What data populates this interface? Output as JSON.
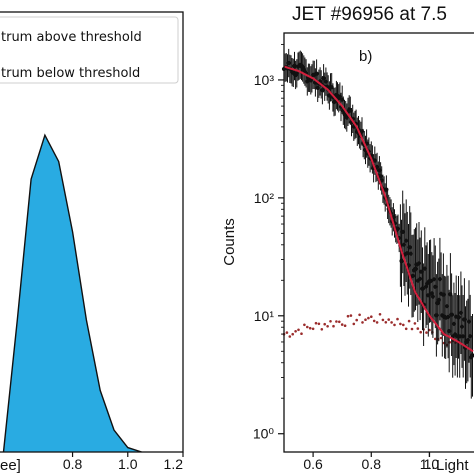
{
  "chart_data": [
    {
      "type": "area",
      "legend": {
        "placement": "top",
        "entries": [
          "trum above threshold",
          "trum below threshold"
        ]
      },
      "xlabel": "ee]",
      "xlim": [
        0.53,
        1.2
      ],
      "x_ticks": [
        "0.8",
        "1.0",
        "1.2"
      ],
      "series": [
        {
          "x": [
            0.55,
            0.6,
            0.65,
            0.7,
            0.75,
            0.8,
            0.85,
            0.9,
            0.95,
            1.0,
            1.05
          ],
          "values": [
            0.0,
            0.3,
            0.62,
            0.72,
            0.66,
            0.5,
            0.3,
            0.14,
            0.05,
            0.01,
            0.0
          ]
        }
      ],
      "colors": {
        "fill": "#29abe2",
        "edge": "#111111"
      }
    },
    {
      "type": "scatter",
      "title": "JET #96956 at 7.5",
      "panel_label": "b)",
      "ylabel": "Counts",
      "xlabel": "Light",
      "yscale": "log",
      "xlim": [
        0.5,
        1.16
      ],
      "ylim": [
        0.7,
        2500
      ],
      "x_ticks": [
        "0.6",
        "0.8",
        "1.0",
        "1."
      ],
      "y_ticks": [
        {
          "value": 1,
          "label": "10⁰"
        },
        {
          "value": 10,
          "label": "10¹"
        },
        {
          "value": 100,
          "label": "10²"
        },
        {
          "value": 1000,
          "label": "10³"
        }
      ],
      "series": [
        {
          "role": "measured",
          "x": [
            0.5,
            0.55,
            0.6,
            0.65,
            0.7,
            0.75,
            0.8,
            0.85,
            0.9,
            0.95,
            1.0,
            1.05,
            1.1,
            1.15
          ],
          "values": [
            1300,
            1200,
            1050,
            850,
            620,
            420,
            230,
            110,
            42,
            20,
            16,
            13,
            8,
            6
          ]
        },
        {
          "role": "fit",
          "x": [
            0.5,
            0.55,
            0.6,
            0.65,
            0.7,
            0.75,
            0.8,
            0.85,
            0.9,
            0.95,
            1.0,
            1.05,
            1.1,
            1.15
          ],
          "values": [
            1300,
            1190,
            1030,
            830,
            600,
            400,
            215,
            100,
            38,
            16,
            10,
            7,
            6,
            5
          ]
        },
        {
          "role": "background",
          "x": [
            0.5,
            0.55,
            0.6,
            0.65,
            0.7,
            0.75,
            0.8,
            0.85,
            0.9,
            0.95,
            1.0,
            1.05,
            1.1
          ],
          "values": [
            7,
            7.6,
            8.1,
            8.6,
            9.0,
            9.3,
            9.5,
            9.3,
            8.8,
            8.0,
            7.2,
            6.4,
            5.6
          ]
        }
      ],
      "colors": {
        "measured": "#111111",
        "fit": "#d21f3c",
        "background": "#9b2d2d"
      }
    }
  ]
}
